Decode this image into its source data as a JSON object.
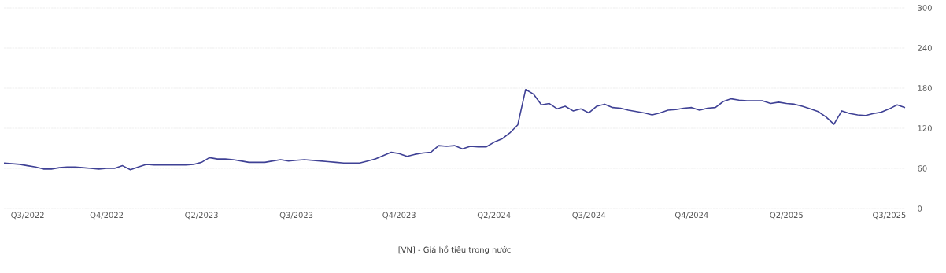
{
  "chart_data": {
    "type": "line",
    "categories": [
      null,
      null,
      null,
      "Q3/2022",
      null,
      null,
      null,
      null,
      null,
      null,
      null,
      null,
      null,
      "Q4/2022",
      null,
      null,
      null,
      null,
      null,
      null,
      null,
      null,
      null,
      null,
      null,
      "Q2/2023",
      null,
      null,
      null,
      null,
      null,
      null,
      null,
      null,
      null,
      null,
      null,
      "Q3/2023",
      null,
      null,
      null,
      null,
      null,
      null,
      null,
      null,
      null,
      null,
      null,
      null,
      "Q4/2023",
      null,
      null,
      null,
      null,
      null,
      null,
      null,
      null,
      null,
      null,
      null,
      "Q2/2024",
      null,
      null,
      null,
      null,
      null,
      null,
      null,
      null,
      null,
      null,
      null,
      "Q3/2024",
      null,
      null,
      null,
      null,
      null,
      null,
      null,
      null,
      null,
      null,
      null,
      null,
      "Q4/2024",
      null,
      null,
      null,
      null,
      null,
      null,
      null,
      null,
      null,
      null,
      null,
      "Q2/2025",
      null,
      null,
      null,
      null,
      null,
      null,
      null,
      null,
      null,
      null,
      null,
      null,
      "Q3/2025",
      null,
      null
    ],
    "series": [
      {
        "name": "[VN] - Giá hồ tiêu trong nước",
        "color": "#3f4195",
        "values": [
          68,
          67,
          66,
          64,
          62,
          59,
          59,
          61,
          62,
          62,
          61,
          60,
          59,
          60,
          60,
          64,
          58,
          62,
          66,
          65,
          65,
          65,
          65,
          65,
          66,
          69,
          76,
          74,
          74,
          73,
          71,
          69,
          69,
          69,
          71,
          73,
          71,
          72,
          73,
          72,
          71,
          70,
          69,
          68,
          68,
          68,
          71,
          74,
          79,
          84,
          82,
          78,
          81,
          83,
          84,
          94,
          93,
          94,
          89,
          93,
          92,
          92,
          99,
          104,
          113,
          125,
          178,
          171,
          155,
          157,
          149,
          153,
          146,
          149,
          143,
          153,
          156,
          151,
          150,
          147,
          145,
          143,
          140,
          143,
          147,
          148,
          150,
          151,
          147,
          150,
          151,
          160,
          164,
          162,
          161,
          161,
          161,
          157,
          159,
          157,
          156,
          153,
          149,
          145,
          137,
          126,
          146,
          142,
          140,
          139,
          142,
          144,
          149,
          155,
          151
        ]
      }
    ],
    "ylim": [
      0,
      300
    ],
    "yticks": [
      0,
      60,
      120,
      180,
      240,
      300
    ],
    "grid": "y",
    "legend": "bottom"
  }
}
